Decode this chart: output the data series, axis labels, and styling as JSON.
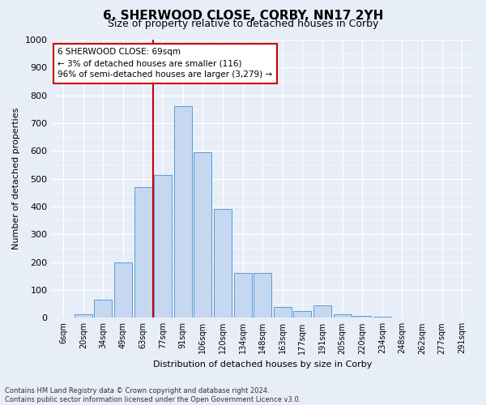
{
  "title": "6, SHERWOOD CLOSE, CORBY, NN17 2YH",
  "subtitle": "Size of property relative to detached houses in Corby",
  "xlabel": "Distribution of detached houses by size in Corby",
  "ylabel": "Number of detached properties",
  "bar_labels": [
    "6sqm",
    "20sqm",
    "34sqm",
    "49sqm",
    "63sqm",
    "77sqm",
    "91sqm",
    "106sqm",
    "120sqm",
    "134sqm",
    "148sqm",
    "163sqm",
    "177sqm",
    "191sqm",
    "205sqm",
    "220sqm",
    "234sqm",
    "248sqm",
    "262sqm",
    "277sqm",
    "291sqm"
  ],
  "bar_values": [
    0,
    12,
    65,
    200,
    470,
    515,
    760,
    595,
    390,
    160,
    160,
    40,
    25,
    45,
    12,
    7,
    5,
    0,
    0,
    0,
    0
  ],
  "bar_color": "#c5d8f0",
  "bar_edge_color": "#5b9bd5",
  "annotation_line0": "6 SHERWOOD CLOSE: 69sqm",
  "annotation_line1": "← 3% of detached houses are smaller (116)",
  "annotation_line2": "96% of semi-detached houses are larger (3,279) →",
  "annotation_box_facecolor": "#ffffff",
  "annotation_box_edgecolor": "#cc0000",
  "vline_color": "#cc0000",
  "vline_x": 4.5,
  "ylim": [
    0,
    1000
  ],
  "yticks": [
    0,
    100,
    200,
    300,
    400,
    500,
    600,
    700,
    800,
    900,
    1000
  ],
  "footer1": "Contains HM Land Registry data © Crown copyright and database right 2024.",
  "footer2": "Contains public sector information licensed under the Open Government Licence v3.0.",
  "bg_color": "#e8eef8",
  "plot_bg_color": "#e8eef8",
  "title_fontsize": 11,
  "subtitle_fontsize": 9,
  "axis_label_fontsize": 8,
  "tick_fontsize": 7,
  "annotation_fontsize": 7.5,
  "footer_fontsize": 6
}
